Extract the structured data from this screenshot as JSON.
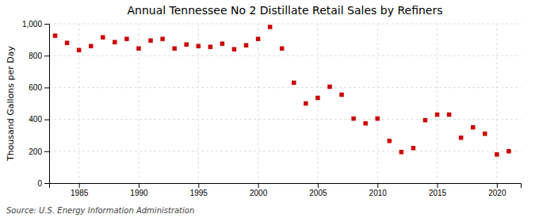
{
  "chart_data": {
    "type": "scatter",
    "title": "Annual Tennessee No 2 Distillate Retail Sales by Refiners",
    "ylabel": "Thousand Gallons per Day",
    "source": "Source: U.S. Energy Information Administration",
    "x": [
      1983,
      1984,
      1985,
      1986,
      1987,
      1988,
      1989,
      1990,
      1991,
      1992,
      1993,
      1994,
      1995,
      1996,
      1997,
      1998,
      1999,
      2000,
      2001,
      2002,
      2003,
      2004,
      2005,
      2006,
      2007,
      2008,
      2009,
      2010,
      2011,
      2012,
      2013,
      2014,
      2015,
      2016,
      2017,
      2018,
      2019,
      2020,
      2021
    ],
    "values": [
      925,
      880,
      835,
      860,
      915,
      885,
      905,
      845,
      895,
      905,
      845,
      870,
      860,
      855,
      875,
      840,
      865,
      905,
      980,
      845,
      630,
      500,
      535,
      605,
      555,
      405,
      375,
      405,
      265,
      195,
      220,
      395,
      430,
      430,
      285,
      350,
      310,
      180,
      200
    ],
    "color": "#cc0000",
    "marker": "square",
    "xlim": [
      1982.5,
      2022
    ],
    "xticks": [
      1985,
      1990,
      1995,
      2000,
      2005,
      2010,
      2015,
      2020
    ],
    "ylim": [
      0,
      1000
    ],
    "yticks": [
      0,
      200,
      400,
      600,
      800,
      {
        "value": 1000,
        "label": "1,000"
      }
    ],
    "grid": true
  }
}
